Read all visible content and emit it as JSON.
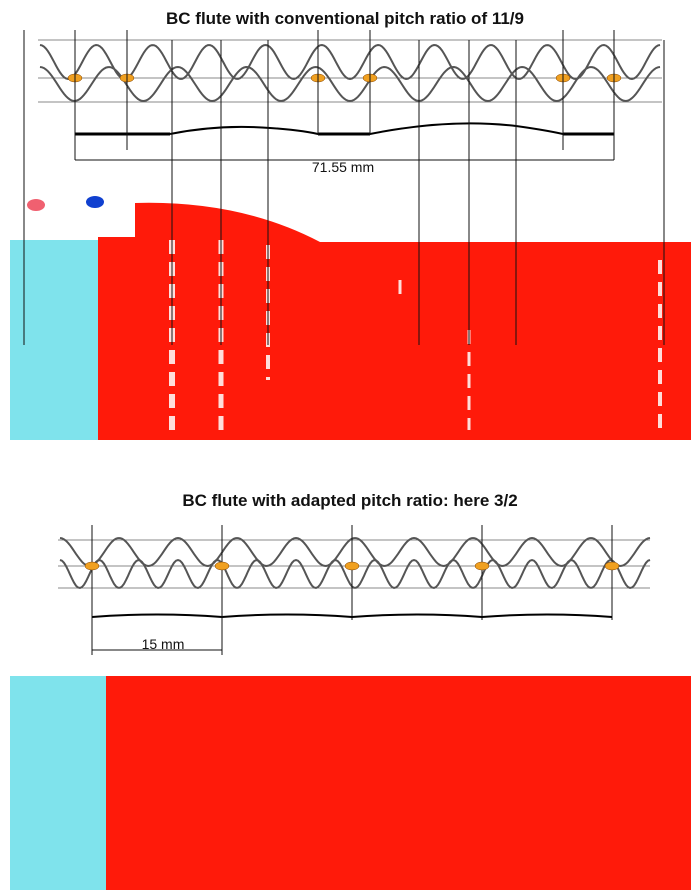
{
  "top": {
    "title": "BC flute with conventional pitch ratio of 11/9",
    "dimension": "71.55 mm"
  },
  "bottom": {
    "title": "BC flute with adapted pitch ratio: here 3/2",
    "dimension": "15 mm"
  }
}
